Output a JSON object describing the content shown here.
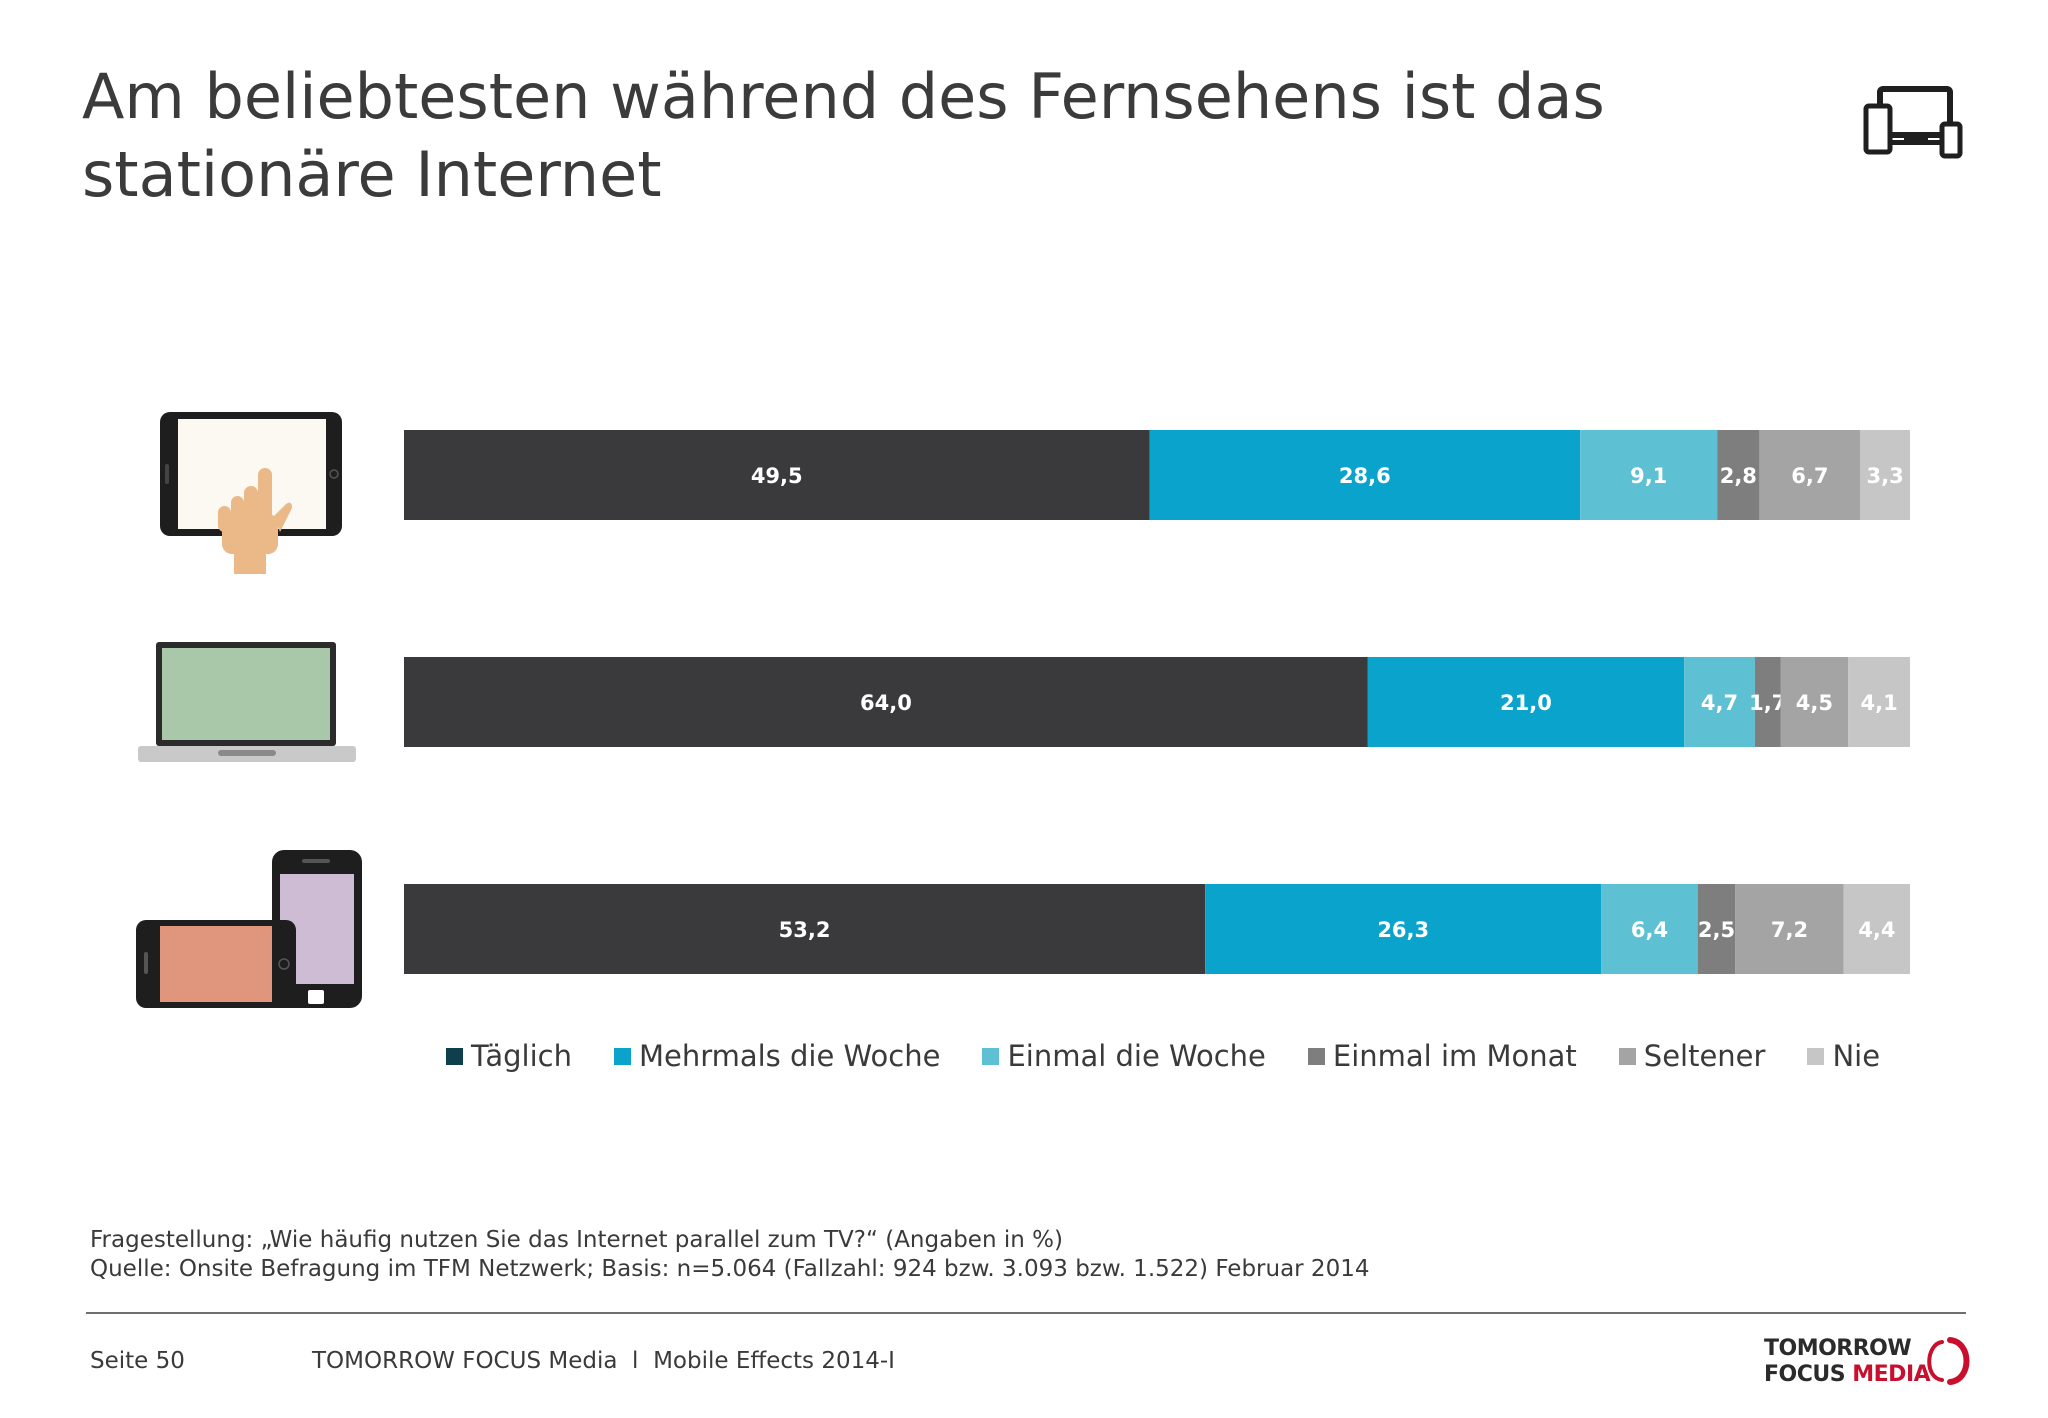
{
  "title": "Am beliebtesten während des Fernsehens ist das stationäre Internet",
  "chart_data": {
    "type": "bar",
    "orientation": "horizontal",
    "stacked": true,
    "categories": [
      "Tablet",
      "Laptop",
      "Smartphone"
    ],
    "series": [
      {
        "name": "Täglich",
        "color": "#3a3a3c",
        "values": [
          49.5,
          64.0,
          53.2
        ],
        "labels": [
          "49,5",
          "64,0",
          "53,2"
        ]
      },
      {
        "name": "Mehrmals die Woche",
        "color": "#0aa3cc",
        "values": [
          28.6,
          21.0,
          26.3
        ],
        "labels": [
          "28,6",
          "21,0",
          "26,3"
        ]
      },
      {
        "name": "Einmal die Woche",
        "color": "#5ec0d3",
        "values": [
          9.1,
          4.7,
          6.4
        ],
        "labels": [
          "9,1",
          "4,7",
          "6,4"
        ]
      },
      {
        "name": "Einmal im Monat",
        "color": "#7e7e7e",
        "values": [
          2.8,
          1.7,
          2.5
        ],
        "labels": [
          "2,8",
          "1,7",
          "2,5"
        ]
      },
      {
        "name": "Seltener",
        "color": "#a4a4a4",
        "values": [
          6.7,
          4.5,
          7.2
        ],
        "labels": [
          "6,7",
          "4,5",
          "7,2"
        ]
      },
      {
        "name": "Nie",
        "color": "#c6c6c6",
        "values": [
          3.3,
          4.1,
          4.4
        ],
        "labels": [
          "3,3",
          "4,1",
          "4,4"
        ]
      }
    ],
    "legend_swatch_colors": [
      "#0f3f4d",
      "#0aa3cc",
      "#5ec0d3",
      "#7e7e7e",
      "#a4a4a4",
      "#c6c6c6"
    ],
    "xlim": [
      0,
      100
    ],
    "grid": false,
    "legend_position": "bottom",
    "title": "",
    "xlabel": "",
    "ylabel": ""
  },
  "legend": [
    {
      "label": "Täglich"
    },
    {
      "label": "Mehrmals die Woche"
    },
    {
      "label": "Einmal die Woche"
    },
    {
      "label": "Einmal im Monat"
    },
    {
      "label": "Seltener"
    },
    {
      "label": "Nie"
    }
  ],
  "icons": {
    "header": "devices-icon",
    "rows": [
      "tablet-touch-icon",
      "laptop-icon",
      "phone-tablet-icon"
    ]
  },
  "footnote": {
    "question": "Fragestellung: „Wie häufig nutzen Sie das Internet parallel zum TV?“ (Angaben in %)",
    "source": "Quelle: Onsite Befragung im TFM Netzwerk; Basis: n=5.064 (Fallzahl: 924 bzw. 3.093 bzw. 1.522) Februar 2014"
  },
  "footer": {
    "page": "Seite 50",
    "text": "TOMORROW FOCUS Media  l  Mobile Effects 2014-I"
  },
  "logo": {
    "line1": "TOMORROW",
    "line2_a": "FOCUS",
    "line2_b": "MEDIA",
    "accent_color": "#c8102e"
  }
}
